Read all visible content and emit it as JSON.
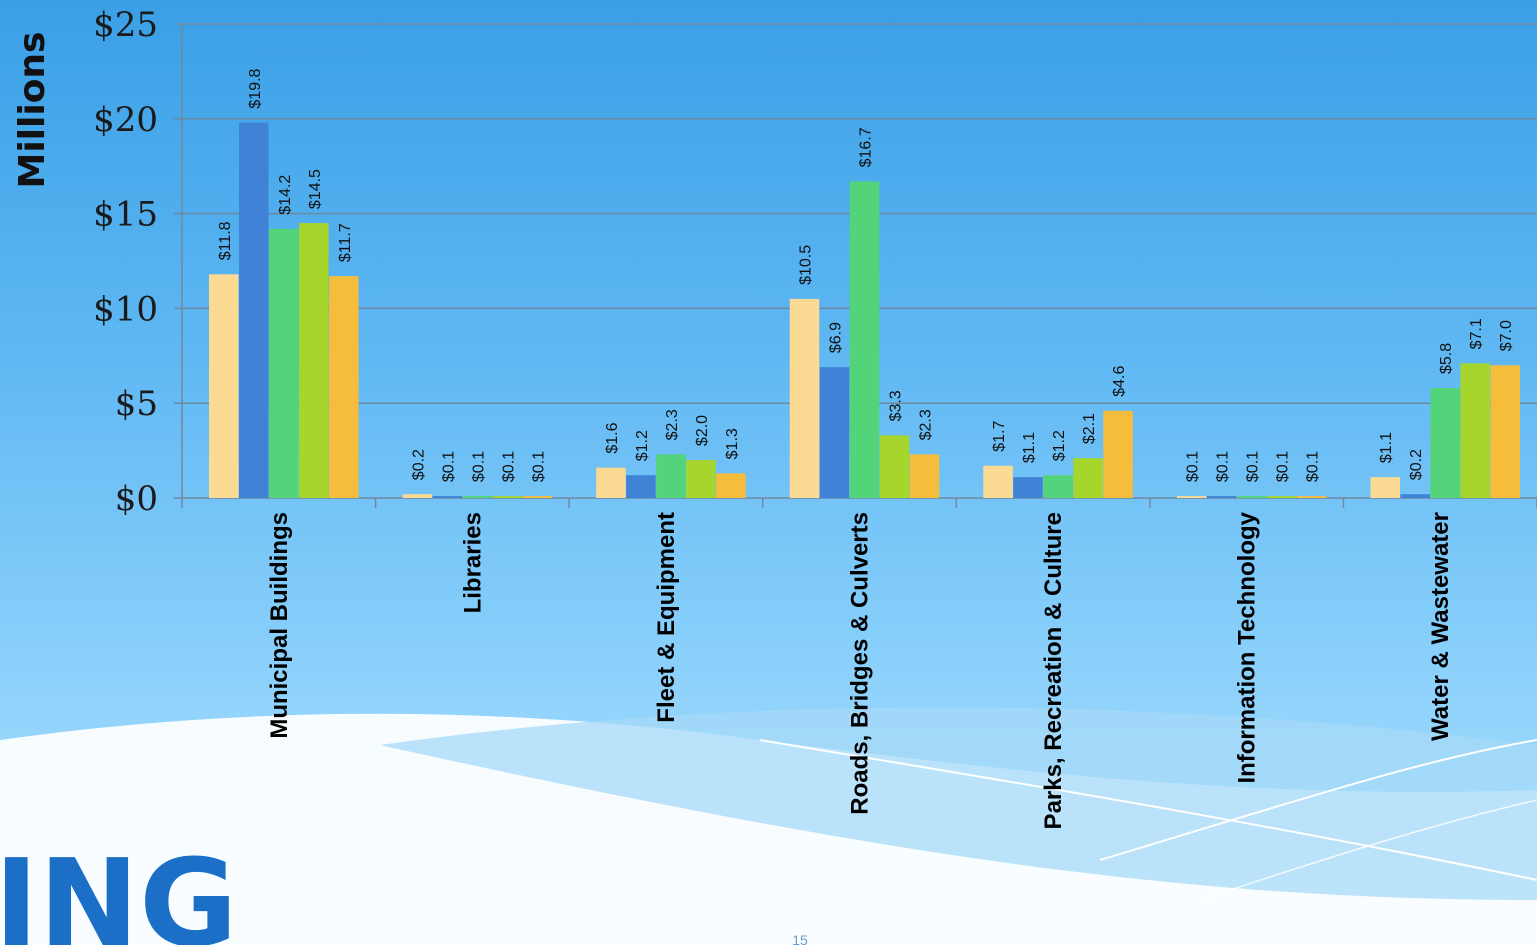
{
  "logo_text": "ING",
  "slide_number": "15",
  "colors": {
    "series": [
      "#fbdb93",
      "#3f82d6",
      "#53d37a",
      "#a6d52c",
      "#f6bd3c"
    ],
    "grid": "#6f8aa0",
    "axis": "#6f8aa0"
  },
  "chart_data": {
    "type": "bar",
    "ylabel": "Millions",
    "ylim": [
      0,
      25
    ],
    "yticks": [
      0,
      5,
      10,
      15,
      20,
      25
    ],
    "ytick_labels": [
      "$0",
      "$5",
      "$10",
      "$15",
      "$20",
      "$25"
    ],
    "grid": true,
    "legend": "none",
    "categories": [
      "Municipal Buildings",
      "Libraries",
      "Fleet & Equipment",
      "Roads, Bridges & Culverts",
      "Parks, Recreation & Culture",
      "Information Technology",
      "Water & Wastewater"
    ],
    "series": [
      {
        "values": [
          11.8,
          0.2,
          1.6,
          10.5,
          1.7,
          0.1,
          1.1
        ],
        "labels": [
          "$11.8",
          "$0.2",
          "$1.6",
          "$10.5",
          "$1.7",
          "$0.1",
          "$1.1"
        ]
      },
      {
        "values": [
          19.8,
          0.1,
          1.2,
          6.9,
          1.1,
          0.1,
          0.2
        ],
        "labels": [
          "$19.8",
          "$0.1",
          "$1.2",
          "$6.9",
          "$1.1",
          "$0.1",
          "$0.2"
        ]
      },
      {
        "values": [
          14.2,
          0.1,
          2.3,
          16.7,
          1.2,
          0.1,
          5.8
        ],
        "labels": [
          "$14.2",
          "$0.1",
          "$2.3",
          "$16.7",
          "$1.2",
          "$0.1",
          "$5.8"
        ]
      },
      {
        "values": [
          14.5,
          0.1,
          2.0,
          3.3,
          2.1,
          0.1,
          7.1
        ],
        "labels": [
          "$14.5",
          "$0.1",
          "$2.0",
          "$3.3",
          "$2.1",
          "$0.1",
          "$7.1"
        ]
      },
      {
        "values": [
          11.7,
          0.1,
          1.3,
          2.3,
          4.6,
          0.1,
          7.0
        ],
        "labels": [
          "$11.7",
          "$0.1",
          "$1.3",
          "$2.3",
          "$4.6",
          "$0.1",
          "$7.0"
        ]
      }
    ]
  }
}
